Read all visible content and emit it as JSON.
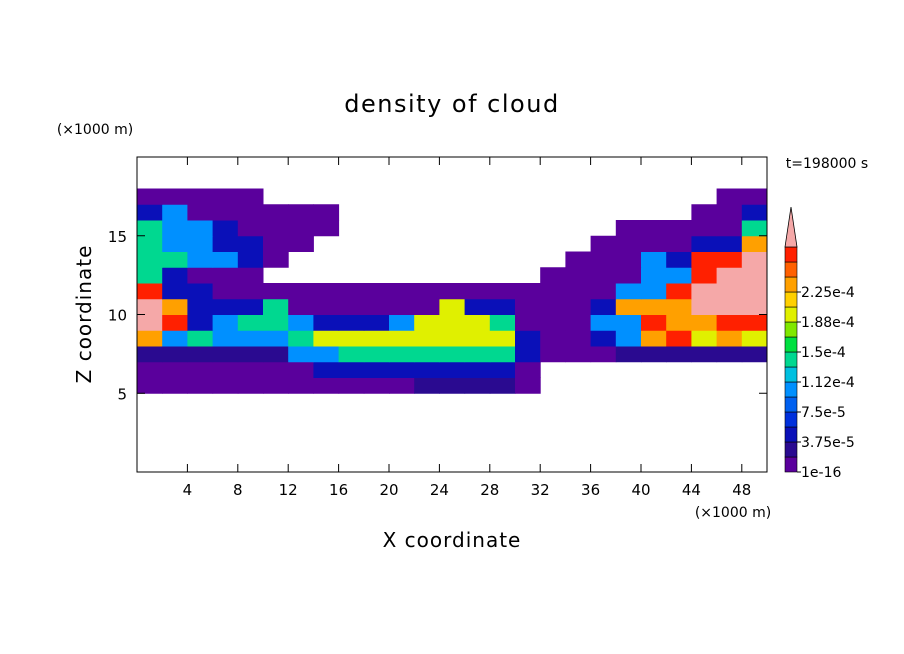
{
  "chart_data": {
    "type": "contour",
    "title": "density of cloud",
    "x_label": "X coordinate",
    "y_label": "Z coordinate",
    "x_unit": "(×1000 m)",
    "y_unit": "(×1000 m)",
    "annotation": "t=198000 s",
    "xlim": [
      0,
      50
    ],
    "ylim": [
      0,
      20
    ],
    "xticks": [
      4,
      8,
      12,
      16,
      20,
      24,
      28,
      32,
      36,
      40,
      44,
      48
    ],
    "yticks": [
      5,
      10,
      15
    ],
    "x": [
      1,
      3,
      5,
      7,
      9,
      11,
      13,
      15,
      17,
      19,
      21,
      23,
      25,
      27,
      29,
      31,
      33,
      35,
      37,
      39,
      41,
      43,
      45,
      47,
      49
    ],
    "y": [
      5.5,
      6.5,
      7.5,
      8.5,
      9.5,
      10.5,
      11.5,
      12.5,
      13.5,
      14.5,
      15.5,
      16.5,
      17.5
    ],
    "z": [
      [
        1e-06,
        1e-06,
        1e-06,
        1e-06,
        1e-06,
        1e-06,
        1e-06,
        1e-06,
        1e-06,
        1e-06,
        1e-06,
        2e-05,
        2e-05,
        2e-05,
        2e-05,
        1e-06,
        0,
        0,
        0,
        0,
        0,
        0,
        0,
        0,
        0
      ],
      [
        1e-06,
        1e-06,
        1e-06,
        1e-06,
        1e-06,
        1e-06,
        1e-06,
        5e-05,
        5e-05,
        5e-05,
        5e-05,
        5e-05,
        5e-05,
        5e-05,
        5e-05,
        1e-06,
        0,
        0,
        0,
        0,
        0,
        0,
        0,
        0,
        0
      ],
      [
        2e-05,
        2e-05,
        2e-05,
        2e-05,
        2e-05,
        2e-05,
        0.00011,
        0.00011,
        0.00014,
        0.00014,
        0.00014,
        0.00014,
        0.00014,
        0.00014,
        0.00014,
        5e-05,
        1e-06,
        1e-06,
        1e-06,
        2e-05,
        2e-05,
        2e-05,
        2e-05,
        2e-05,
        2e-05
      ],
      [
        0.00024,
        0.00011,
        0.00014,
        0.00011,
        0.00011,
        0.00011,
        0.00014,
        0.00019,
        0.00019,
        0.00019,
        0.00019,
        0.00019,
        0.00019,
        0.00019,
        0.00019,
        5e-05,
        1e-06,
        1e-06,
        5e-05,
        0.00011,
        0.00024,
        0.00027,
        0.00019,
        0.00024,
        0.00019
      ],
      [
        0.00029,
        0.00027,
        5e-05,
        0.00011,
        0.00014,
        0.00014,
        0.00011,
        5e-05,
        5e-05,
        5e-05,
        0.00011,
        0.00019,
        0.00019,
        0.00019,
        0.00014,
        1e-06,
        1e-06,
        1e-06,
        0.00011,
        0.00011,
        0.00027,
        0.00024,
        0.00024,
        0.00027,
        0.00027
      ],
      [
        0.00029,
        0.00024,
        5e-05,
        5e-05,
        5e-05,
        0.00014,
        1e-06,
        1e-06,
        1e-06,
        1e-06,
        1e-06,
        1e-06,
        0.00019,
        5e-05,
        5e-05,
        1e-06,
        1e-06,
        1e-06,
        5e-05,
        0.00024,
        0.00024,
        0.00024,
        0.00029,
        0.00029,
        0.00029
      ],
      [
        0.00027,
        5e-05,
        5e-05,
        1e-06,
        1e-06,
        1e-06,
        1e-06,
        1e-06,
        1e-06,
        1e-06,
        1e-06,
        1e-06,
        1e-06,
        1e-06,
        1e-06,
        1e-06,
        1e-06,
        1e-06,
        1e-06,
        0.00011,
        0.00011,
        0.00027,
        0.00029,
        0.00029,
        0.00029
      ],
      [
        0.00014,
        5e-05,
        1e-06,
        1e-06,
        1e-06,
        0,
        0,
        0,
        0,
        0,
        0,
        0,
        0,
        0,
        0,
        0,
        1e-06,
        1e-06,
        1e-06,
        1e-06,
        0.00011,
        0.00011,
        0.00027,
        0.00029,
        0.00029
      ],
      [
        0.00014,
        0.00014,
        0.00011,
        0.00011,
        5e-05,
        1e-06,
        0,
        0,
        0,
        0,
        0,
        0,
        0,
        0,
        0,
        0,
        0,
        1e-06,
        1e-06,
        1e-06,
        0.00011,
        5e-05,
        0.00027,
        0.00027,
        0.00029
      ],
      [
        0.00014,
        0.00011,
        0.00011,
        5e-05,
        5e-05,
        1e-06,
        1e-06,
        0,
        0,
        0,
        0,
        0,
        0,
        0,
        0,
        0,
        0,
        0,
        1e-06,
        1e-06,
        1e-06,
        1e-06,
        5e-05,
        5e-05,
        0.00024
      ],
      [
        0.00014,
        0.00011,
        0.00011,
        5e-05,
        1e-06,
        1e-06,
        1e-06,
        1e-06,
        0,
        0,
        0,
        0,
        0,
        0,
        0,
        0,
        0,
        0,
        0,
        1e-06,
        1e-06,
        1e-06,
        1e-06,
        1e-06,
        0.00014
      ],
      [
        5e-05,
        0.00011,
        1e-06,
        1e-06,
        1e-06,
        1e-06,
        1e-06,
        1e-06,
        0,
        0,
        0,
        0,
        0,
        0,
        0,
        0,
        0,
        0,
        0,
        0,
        0,
        0,
        1e-06,
        1e-06,
        5e-05
      ],
      [
        1e-06,
        1e-06,
        1e-06,
        1e-06,
        1e-06,
        0,
        0,
        0,
        0,
        0,
        0,
        0,
        0,
        0,
        0,
        0,
        0,
        0,
        0,
        0,
        0,
        0,
        0,
        1e-06,
        1e-06
      ]
    ],
    "levels": [
      1e-16,
      1.875e-05,
      3.75e-05,
      5.625e-05,
      7.5e-05,
      9.375e-05,
      0.0001125,
      0.00013125,
      0.00015,
      0.00016875,
      0.0001875,
      0.00020625,
      0.000225,
      0.00024375,
      0.0002625,
      0.00028125
    ],
    "colors": [
      "#5a009c",
      "#2a0a90",
      "#0a10b8",
      "#0030dc",
      "#0060f0",
      "#0090ff",
      "#00c0e0",
      "#00d890",
      "#00e040",
      "#80e800",
      "#e0f000",
      "#ffd000",
      "#ffa000",
      "#ff6000",
      "#ff2000",
      "#f5a8a8"
    ],
    "colorbar_ticks": [
      1e-16,
      {
        "value": 3.75e-05,
        "label": "3.75e-5"
      },
      {
        "value": 7.5e-05,
        "label": "7.5e-5"
      },
      {
        "value": 0.0001125,
        "label": "1.12e-4"
      },
      {
        "value": 0.00015,
        "label": "1.5e-4"
      },
      {
        "value": 0.0001875,
        "label": "1.88e-4"
      },
      {
        "value": 0.000225,
        "label": "2.25e-4"
      }
    ]
  }
}
